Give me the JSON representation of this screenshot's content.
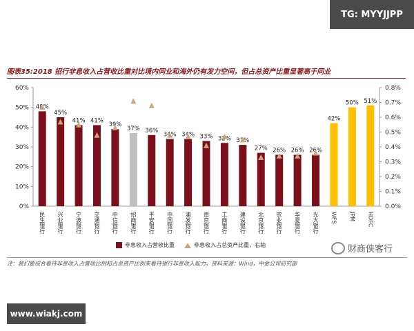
{
  "watermark_top": "TG: MYYJJPP",
  "watermark_bottom": "www.wiakj.com",
  "brand": "财商侠客行",
  "brand_icon": "wechat-icon",
  "title": "图表35:2018 招行非息收入占营收比重对比境内同业和海外仍有发力空间，但占总资产比重显著高于同业",
  "source": "注：我们要综合看待非息收入占营收比例和占总资产比例来看待银行非息收入能力。资料来源：Wind，中金公司研究部",
  "colors": {
    "domestic": "#7b0f1b",
    "cmb": "#bfbfbf",
    "foreign": "#ffc000",
    "marker": "#c8a680"
  },
  "chart_data": {
    "type": "bar",
    "categories": [
      "民生银行",
      "兴业银行",
      "宁波银行",
      "交通银行",
      "中信银行",
      "招商银行",
      "平安银行",
      "中国银行",
      "浦发银行",
      "南京银行",
      "工商银行",
      "建设银行",
      "北京银行",
      "农业银行",
      "华夏银行",
      "光大银行",
      "WFS",
      "JPM",
      "HDFC"
    ],
    "series": [
      {
        "name": "非息收入占营收比重",
        "values": [
          48,
          45,
          41,
          41,
          39,
          37,
          36,
          34,
          34,
          33,
          32,
          31,
          27,
          26,
          26,
          26,
          42,
          50,
          51
        ],
        "labels": [
          "48%",
          "45%",
          "41%",
          "41%",
          "39%",
          "37%",
          "36%",
          "34%",
          "34%",
          "33%",
          "32%",
          "31%",
          "27%",
          "26%",
          "26%",
          "26%",
          "42%",
          "50%",
          "51%"
        ]
      },
      {
        "name": "非息收入占总资产比重，右轴",
        "axis": "right",
        "values": [
          0.67,
          0.57,
          0.55,
          0.48,
          0.53,
          0.71,
          0.68,
          0.48,
          0.47,
          0.41,
          0.47,
          0.45,
          0.33,
          0.34,
          0.34,
          0.36,
          null,
          null,
          null
        ]
      }
    ],
    "y_left": {
      "min": 0,
      "max": 60,
      "ticks": [
        "0%",
        "10%",
        "20%",
        "30%",
        "40%",
        "50%",
        "60%"
      ]
    },
    "y_right": {
      "min": 0,
      "max": 0.8,
      "ticks": [
        "0.0%",
        "0.1%",
        "0.2%",
        "0.3%",
        "0.4%",
        "0.5%",
        "0.6%",
        "0.7%",
        "0.8%"
      ]
    },
    "legend_position": "bottom",
    "grid": false
  }
}
